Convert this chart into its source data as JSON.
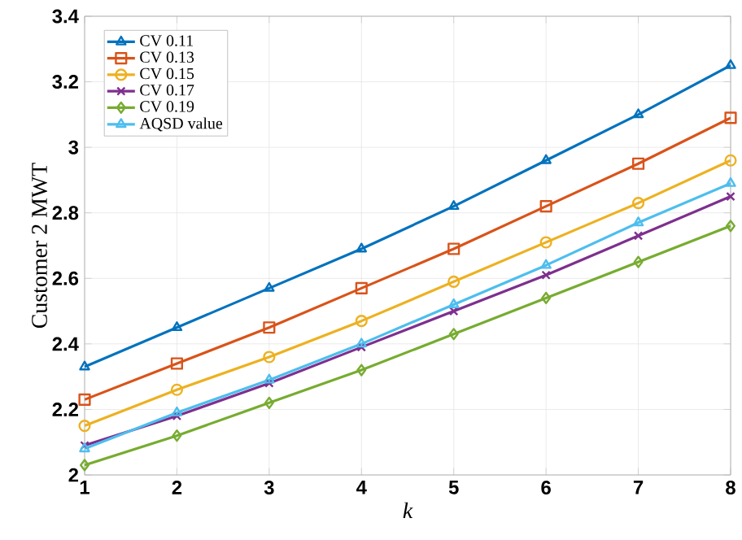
{
  "chart_data": {
    "type": "line",
    "xlabel": "k",
    "ylabel": "Customer 2 MWT",
    "x": [
      1,
      2,
      3,
      4,
      5,
      6,
      7,
      8
    ],
    "xlim": [
      1,
      8
    ],
    "xticks": [
      1,
      2,
      3,
      4,
      5,
      6,
      7,
      8
    ],
    "ylim": [
      2,
      3.4
    ],
    "yticks": [
      2,
      2.2,
      2.4,
      2.6,
      2.8,
      3,
      3.2,
      3.4
    ],
    "grid": true,
    "legend": "top left",
    "line_style": "solid",
    "series": [
      {
        "name": "CV 0.11",
        "color": "#0072bd",
        "marker": "triangle",
        "values": [
          2.33,
          2.45,
          2.57,
          2.69,
          2.82,
          2.96,
          3.1,
          3.25
        ]
      },
      {
        "name": "CV 0.13",
        "color": "#d95319",
        "marker": "square",
        "values": [
          2.23,
          2.34,
          2.45,
          2.57,
          2.69,
          2.82,
          2.95,
          3.09
        ]
      },
      {
        "name": "CV 0.15",
        "color": "#edb120",
        "marker": "circle",
        "values": [
          2.15,
          2.26,
          2.36,
          2.47,
          2.59,
          2.71,
          2.83,
          2.96
        ]
      },
      {
        "name": "CV 0.17",
        "color": "#7e2f8e",
        "marker": "cross",
        "values": [
          2.09,
          2.18,
          2.28,
          2.39,
          2.5,
          2.61,
          2.73,
          2.85
        ]
      },
      {
        "name": "CV 0.19",
        "color": "#77ac30",
        "marker": "diamond",
        "values": [
          2.03,
          2.12,
          2.22,
          2.32,
          2.43,
          2.54,
          2.65,
          2.76
        ]
      },
      {
        "name": "AQSD value",
        "color": "#4dbeee",
        "marker": "triangle",
        "values": [
          2.08,
          2.19,
          2.29,
          2.4,
          2.52,
          2.64,
          2.77,
          2.89
        ]
      }
    ]
  }
}
